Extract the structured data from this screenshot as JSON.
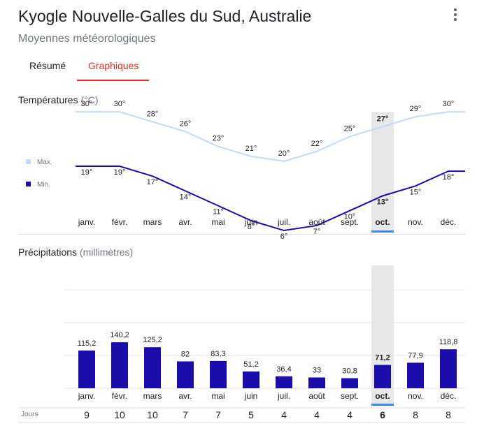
{
  "header": {
    "title": "Kyogle Nouvelle-Galles du Sud, Australie",
    "subtitle": "Moyennes météorologiques"
  },
  "tabs": [
    {
      "label": "Résumé",
      "active": false
    },
    {
      "label": "Graphiques",
      "active": true
    }
  ],
  "colors": {
    "accent": "#d93025",
    "max_line": "#c6d9f7",
    "min_line": "#1a0dab",
    "bar": "#1a0dab",
    "highlight": "#e8e8e8",
    "highlight_marker": "#4285f4"
  },
  "temperature_section": {
    "title": "Températures",
    "unit": "(°C)"
  },
  "precipitation_section": {
    "title": "Précipitations",
    "unit": "(millimètres)",
    "days_label": "Jours"
  },
  "chart_data": [
    {
      "type": "line",
      "title": "Températures",
      "unit": "°C",
      "categories": [
        "janv.",
        "févr.",
        "mars",
        "avr.",
        "mai",
        "juin",
        "juil.",
        "août",
        "sept.",
        "oct.",
        "nov.",
        "déc."
      ],
      "highlighted_index": 9,
      "legend_placement": "left",
      "series": [
        {
          "name": "Max.",
          "values": [
            30,
            30,
            28,
            26,
            23,
            21,
            20,
            22,
            25,
            27,
            29,
            30
          ]
        },
        {
          "name": "Min.",
          "values": [
            19,
            19,
            17,
            14,
            11,
            8,
            6,
            7,
            10,
            13,
            15,
            18
          ]
        }
      ]
    },
    {
      "type": "bar",
      "title": "Précipitations",
      "unit": "millimètres",
      "categories": [
        "janv.",
        "févr.",
        "mars",
        "avr.",
        "mai",
        "juin",
        "juil.",
        "août",
        "sept.",
        "oct.",
        "nov.",
        "déc."
      ],
      "highlighted_index": 9,
      "values": [
        115.2,
        140.2,
        125.2,
        82,
        83.3,
        51.2,
        36.4,
        33,
        30.8,
        71.2,
        77.9,
        118.8
      ],
      "value_labels": [
        "115,2",
        "140,2",
        "125,2",
        "82",
        "83,3",
        "51,2",
        "36,4",
        "33",
        "30,8",
        "71,2",
        "77,9",
        "118,8"
      ],
      "days": [
        9,
        10,
        10,
        7,
        7,
        5,
        4,
        4,
        4,
        6,
        8,
        8
      ],
      "ylim": [
        0,
        300
      ],
      "grid": true
    }
  ]
}
